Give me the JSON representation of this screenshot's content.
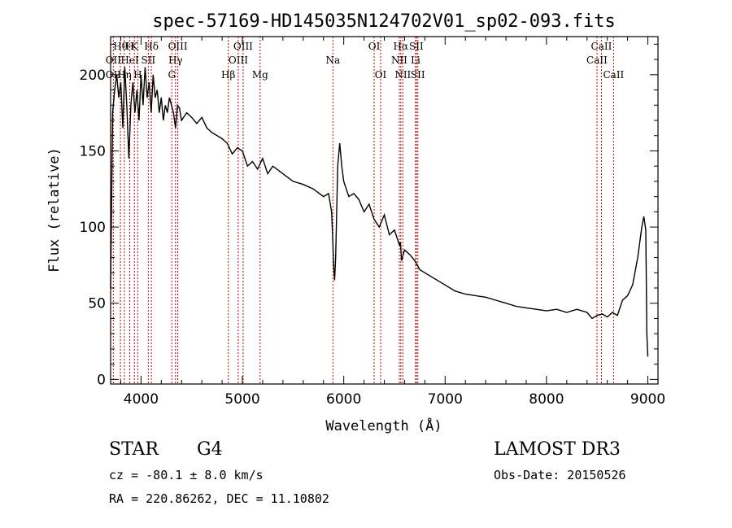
{
  "chart_data": {
    "type": "line",
    "title": "spec-57169-HD145035N124702V01_sp02-093.fits",
    "xlabel": "Wavelength (Å)",
    "ylabel": "Flux (relative)",
    "xlim": [
      3700,
      9100
    ],
    "ylim": [
      -3,
      225
    ],
    "xticks": [
      4000,
      5000,
      6000,
      7000,
      8000,
      9000
    ],
    "yticks": [
      0,
      50,
      100,
      150,
      200
    ],
    "series": [
      {
        "name": "flux",
        "x": [
          3700,
          3720,
          3740,
          3760,
          3780,
          3800,
          3820,
          3840,
          3860,
          3880,
          3900,
          3920,
          3940,
          3960,
          3980,
          4000,
          4020,
          4040,
          4060,
          4080,
          4100,
          4120,
          4140,
          4160,
          4180,
          4200,
          4220,
          4240,
          4260,
          4280,
          4300,
          4320,
          4340,
          4360,
          4380,
          4400,
          4450,
          4500,
          4550,
          4600,
          4650,
          4700,
          4750,
          4800,
          4850,
          4900,
          4950,
          5000,
          5050,
          5100,
          5150,
          5200,
          5250,
          5300,
          5400,
          5500,
          5600,
          5700,
          5800,
          5850,
          5880,
          5890,
          5900,
          5910,
          5920,
          5940,
          5960,
          5980,
          6000,
          6050,
          6100,
          6150,
          6200,
          6250,
          6300,
          6350,
          6400,
          6450,
          6500,
          6550,
          6560,
          6570,
          6600,
          6650,
          6700,
          6750,
          6800,
          6900,
          7000,
          7100,
          7200,
          7300,
          7400,
          7500,
          7600,
          7700,
          7800,
          7900,
          8000,
          8100,
          8200,
          8300,
          8400,
          8450,
          8500,
          8550,
          8600,
          8650,
          8700,
          8750,
          8800,
          8850,
          8900,
          8940,
          8960,
          8980,
          8990,
          9000
        ],
        "values": [
          60,
          175,
          190,
          200,
          185,
          195,
          165,
          205,
          180,
          145,
          180,
          195,
          175,
          190,
          170,
          200,
          180,
          205,
          185,
          195,
          175,
          200,
          185,
          190,
          175,
          185,
          170,
          180,
          175,
          185,
          180,
          175,
          165,
          180,
          178,
          170,
          175,
          172,
          168,
          172,
          165,
          162,
          160,
          158,
          155,
          148,
          152,
          150,
          140,
          143,
          138,
          145,
          135,
          140,
          135,
          130,
          128,
          125,
          120,
          122,
          110,
          95,
          75,
          65,
          80,
          140,
          155,
          140,
          130,
          120,
          122,
          118,
          110,
          115,
          105,
          100,
          108,
          95,
          98,
          88,
          90,
          78,
          85,
          82,
          78,
          72,
          70,
          66,
          62,
          58,
          56,
          55,
          54,
          52,
          50,
          48,
          47,
          46,
          45,
          46,
          44,
          46,
          44,
          40,
          42,
          43,
          41,
          44,
          42,
          52,
          55,
          62,
          80,
          100,
          107,
          98,
          30,
          15
        ]
      }
    ],
    "spectral_lines": [
      {
        "label": "OII",
        "wavelength": 3727,
        "row": 2
      },
      {
        "label": "OII",
        "wavelength": 3727,
        "row": 1
      },
      {
        "label": "Hθ",
        "wavelength": 3797,
        "row": 0
      },
      {
        "label": "H",
        "wavelength": 3889,
        "row": 0
      },
      {
        "label": "HeI",
        "wavelength": 3889,
        "row": 1
      },
      {
        "label": "K",
        "wavelength": 3934,
        "row": 0
      },
      {
        "label": "Hη",
        "wavelength": 3835,
        "row": 2
      },
      {
        "label": "H",
        "wavelength": 3968,
        "row": 2
      },
      {
        "label": "SII",
        "wavelength": 4072,
        "row": 1
      },
      {
        "label": "Hδ",
        "wavelength": 4102,
        "row": 0
      },
      {
        "label": "OIII",
        "wavelength": 4363,
        "row": 0
      },
      {
        "label": "Hγ",
        "wavelength": 4340,
        "row": 1
      },
      {
        "label": "G",
        "wavelength": 4304,
        "row": 2
      },
      {
        "label": "Hβ",
        "wavelength": 4861,
        "row": 2
      },
      {
        "label": "OIII",
        "wavelength": 5007,
        "row": 0
      },
      {
        "label": "OIII",
        "wavelength": 4959,
        "row": 1
      },
      {
        "label": "Mg",
        "wavelength": 5175,
        "row": 2
      },
      {
        "label": "Na",
        "wavelength": 5893,
        "row": 1
      },
      {
        "label": "OI",
        "wavelength": 6300,
        "row": 0
      },
      {
        "label": "OI",
        "wavelength": 6364,
        "row": 2
      },
      {
        "label": "Hα",
        "wavelength": 6563,
        "row": 0
      },
      {
        "label": "NII",
        "wavelength": 6548,
        "row": 1
      },
      {
        "label": "NII",
        "wavelength": 6583,
        "row": 2
      },
      {
        "label": "SII",
        "wavelength": 6716,
        "row": 0
      },
      {
        "label": "Li",
        "wavelength": 6708,
        "row": 1
      },
      {
        "label": "SII",
        "wavelength": 6731,
        "row": 2
      },
      {
        "label": "CaII",
        "wavelength": 8542,
        "row": 0
      },
      {
        "label": "CaII",
        "wavelength": 8498,
        "row": 1
      },
      {
        "label": "CaII",
        "wavelength": 8662,
        "row": 2
      }
    ]
  },
  "info": {
    "object_class": "STAR",
    "subclass": "G4",
    "survey": "LAMOST DR3",
    "cz": "cz = -80.1 ± 8.0 km/s",
    "obs_date": "Obs-Date: 20150526",
    "coords": "RA = 220.86262, DEC =  11.10802"
  },
  "colors": {
    "line": "#000000",
    "marker": "#cc0000"
  }
}
